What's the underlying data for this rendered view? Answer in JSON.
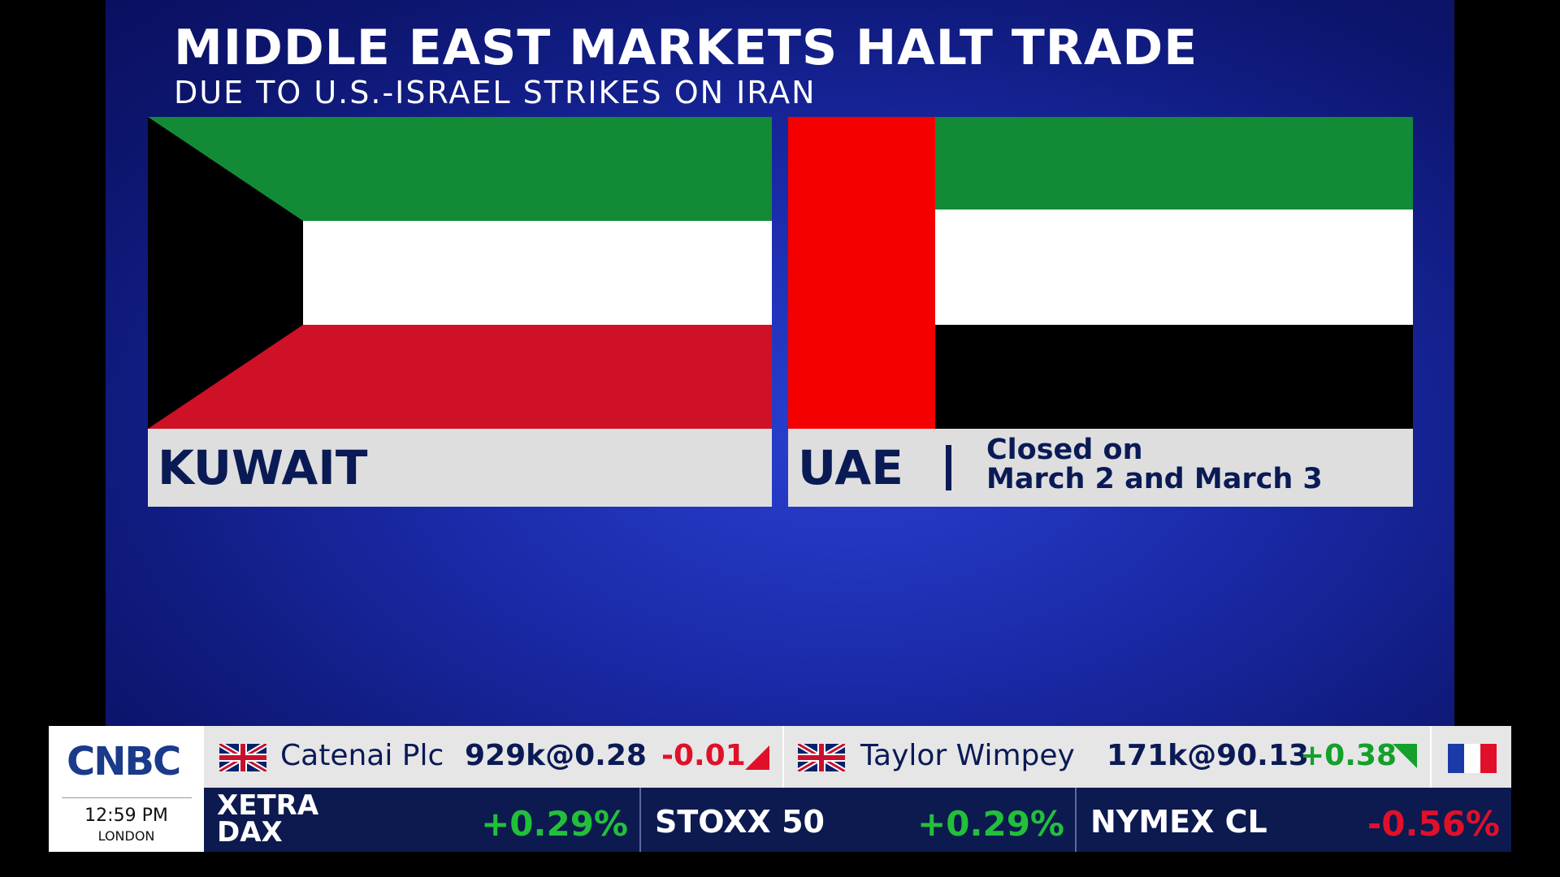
{
  "header": {
    "title": "MIDDLE EAST MARKETS HALT TRADE",
    "subtitle": "DUE TO U.S.-ISRAEL STRIKES ON IRAN"
  },
  "panels": [
    {
      "label": "KUWAIT"
    },
    {
      "label": "UAE",
      "note_line1": "Closed on",
      "note_line2": "March 2 and March 3"
    }
  ],
  "ticker": {
    "logo": "CNBC",
    "time": "12:59 PM",
    "city": "LONDON",
    "stocks": [
      {
        "name": "Catenai Plc",
        "trade": "929k@0.28",
        "change": "-0.01"
      },
      {
        "name": "Taylor Wimpey",
        "trade": "171k@90.13",
        "change": "+0.38"
      }
    ],
    "indices": [
      {
        "name_line1": "XETRA",
        "name_line2": "DAX",
        "change": "+0.29%"
      },
      {
        "name_line1": "STOXX 50",
        "change": "+0.29%"
      },
      {
        "name_line1": "NYMEX CL",
        "change": "-0.56%"
      }
    ]
  }
}
